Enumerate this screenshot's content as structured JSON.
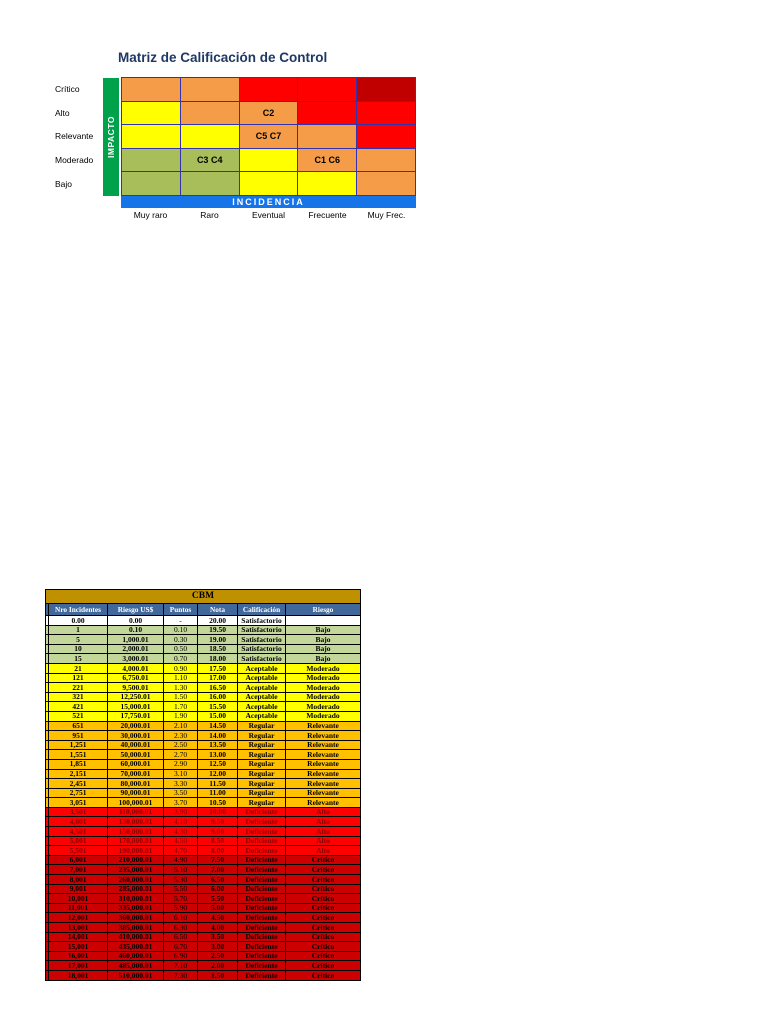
{
  "matrix": {
    "title": "Matriz de Calificación de Control",
    "impact_axis_label": "IMPACTO",
    "incidence_axis_label": "INCIDENCIA",
    "row_labels": [
      "Crítico",
      "Alto",
      "Relevante",
      "Moderado",
      "Bajo"
    ],
    "col_labels": [
      "Muy raro",
      "Raro",
      "Eventual",
      "Frecuente",
      "Muy Frec."
    ],
    "colors": {
      "low": "#A8BE5A",
      "medium": "#FFFF00",
      "high": "#F49C48",
      "severe": "#FF0000",
      "extreme": "#C00000",
      "impact_band": "#00A14B",
      "incidence_band": "#1474E8",
      "grid_line": "#3333B2",
      "title_text": "#1F3864"
    },
    "cells": [
      [
        "high",
        "high",
        "severe",
        "severe",
        "extreme"
      ],
      [
        "medium",
        "high",
        "high",
        "severe",
        "severe"
      ],
      [
        "medium",
        "medium",
        "high",
        "high",
        "severe"
      ],
      [
        "low",
        "low",
        "medium",
        "high",
        "high"
      ],
      [
        "low",
        "low",
        "medium",
        "medium",
        "high"
      ]
    ],
    "cell_labels": [
      [
        "",
        "",
        "",
        "",
        ""
      ],
      [
        "",
        "",
        "C2",
        "",
        ""
      ],
      [
        "",
        "",
        "C5 C7",
        "",
        ""
      ],
      [
        "",
        "C3 C4",
        "",
        "C1 C6",
        ""
      ],
      [
        "",
        "",
        "",
        "",
        ""
      ]
    ]
  },
  "table": {
    "title": "CBM",
    "columns": [
      "Nro Incidentes",
      "Riesgo US$",
      "Puntos",
      "Nota",
      "Calificación",
      "Riesgo"
    ],
    "colors": {
      "title_bg": "#BF9000",
      "header_bg": "#41689B",
      "header_fg": "#FFFFFF",
      "border": "#000000"
    },
    "row_styles": {
      "none": {
        "bg": "#FFFFFF",
        "fg": "#000000"
      },
      "bajo": {
        "bg": "#C4D79B",
        "fg": "#000000"
      },
      "moderado": {
        "bg": "#FFFF00",
        "fg": "#000000"
      },
      "relevante": {
        "bg": "#FFC000",
        "fg": "#000000"
      },
      "alto": {
        "bg": "#FF0000",
        "fg": "#8B0000"
      },
      "critico": {
        "bg": "#CC0000",
        "fg": "#000000"
      }
    },
    "rows": [
      [
        "0.00",
        "0.00",
        "-",
        "20.00",
        "Satisfactorio",
        "",
        "none"
      ],
      [
        "1",
        "0.10",
        "0.10",
        "19.50",
        "Satisfactorio",
        "Bajo",
        "bajo"
      ],
      [
        "5",
        "1,000.01",
        "0.30",
        "19.00",
        "Satisfactorio",
        "Bajo",
        "bajo"
      ],
      [
        "10",
        "2,000.01",
        "0.50",
        "18.50",
        "Satisfactorio",
        "Bajo",
        "bajo"
      ],
      [
        "15",
        "3,000.01",
        "0.70",
        "18.00",
        "Satisfactorio",
        "Bajo",
        "bajo"
      ],
      [
        "21",
        "4,000.01",
        "0.90",
        "17.50",
        "Aceptable",
        "Moderado",
        "moderado"
      ],
      [
        "121",
        "6,750.01",
        "1.10",
        "17.00",
        "Aceptable",
        "Moderado",
        "moderado"
      ],
      [
        "221",
        "9,500.01",
        "1.30",
        "16.50",
        "Aceptable",
        "Moderado",
        "moderado"
      ],
      [
        "321",
        "12,250.01",
        "1.50",
        "16.00",
        "Aceptable",
        "Moderado",
        "moderado"
      ],
      [
        "421",
        "15,000.01",
        "1.70",
        "15.50",
        "Aceptable",
        "Moderado",
        "moderado"
      ],
      [
        "521",
        "17,750.01",
        "1.90",
        "15.00",
        "Aceptable",
        "Moderado",
        "moderado"
      ],
      [
        "651",
        "20,000.01",
        "2.10",
        "14.50",
        "Regular",
        "Relevante",
        "relevante"
      ],
      [
        "951",
        "30,000.01",
        "2.30",
        "14.00",
        "Regular",
        "Relevante",
        "relevante"
      ],
      [
        "1,251",
        "40,000.01",
        "2.50",
        "13.50",
        "Regular",
        "Relevante",
        "relevante"
      ],
      [
        "1,551",
        "50,000.01",
        "2.70",
        "13.00",
        "Regular",
        "Relevante",
        "relevante"
      ],
      [
        "1,851",
        "60,000.01",
        "2.90",
        "12.50",
        "Regular",
        "Relevante",
        "relevante"
      ],
      [
        "2,151",
        "70,000.01",
        "3.10",
        "12.00",
        "Regular",
        "Relevante",
        "relevante"
      ],
      [
        "2,451",
        "80,000.01",
        "3.30",
        "11.50",
        "Regular",
        "Relevante",
        "relevante"
      ],
      [
        "2,751",
        "90,000.01",
        "3.50",
        "11.00",
        "Regular",
        "Relevante",
        "relevante"
      ],
      [
        "3,051",
        "100,000.01",
        "3.70",
        "10.50",
        "Regular",
        "Relevante",
        "relevante"
      ],
      [
        "3,501",
        "110,000.01",
        "3.90",
        "10.00",
        "Deficiente",
        "Alto",
        "alto"
      ],
      [
        "4,001",
        "130,000.01",
        "4.10",
        "9.50",
        "Deficiente",
        "Alto",
        "alto"
      ],
      [
        "4,501",
        "150,000.01",
        "4.30",
        "9.00",
        "Deficiente",
        "Alto",
        "alto"
      ],
      [
        "5,001",
        "170,000.01",
        "4.50",
        "8.50",
        "Deficiente",
        "Alto",
        "alto"
      ],
      [
        "5,501",
        "190,000.01",
        "4.70",
        "8.00",
        "Deficiente",
        "Alto",
        "alto"
      ],
      [
        "6,001",
        "210,000.01",
        "4.90",
        "7.50",
        "Deficiente",
        "Crítico",
        "critico"
      ],
      [
        "7,001",
        "235,000.01",
        "5.10",
        "7.00",
        "Deficiente",
        "Crítico",
        "critico"
      ],
      [
        "8,001",
        "260,000.01",
        "5.30",
        "6.50",
        "Deficiente",
        "Crítico",
        "critico"
      ],
      [
        "9,001",
        "285,000.01",
        "5.50",
        "6.00",
        "Deficiente",
        "Crítico",
        "critico"
      ],
      [
        "10,001",
        "310,000.01",
        "5.70",
        "5.50",
        "Deficiente",
        "Crítico",
        "critico"
      ],
      [
        "11,001",
        "335,000.01",
        "5.90",
        "5.00",
        "Deficiente",
        "Crítico",
        "critico"
      ],
      [
        "12,001",
        "360,000.01",
        "6.10",
        "4.50",
        "Deficiente",
        "Crítico",
        "critico"
      ],
      [
        "13,001",
        "385,000.01",
        "6.30",
        "4.00",
        "Deficiente",
        "Crítico",
        "critico"
      ],
      [
        "14,001",
        "410,000.01",
        "6.50",
        "3.50",
        "Deficiente",
        "Crítico",
        "critico"
      ],
      [
        "15,001",
        "435,000.01",
        "6.70",
        "3.00",
        "Deficiente",
        "Crítico",
        "critico"
      ],
      [
        "16,001",
        "460,000.01",
        "6.90",
        "2.50",
        "Deficiente",
        "Crítico",
        "critico"
      ],
      [
        "17,001",
        "485,000.01",
        "7.10",
        "2.00",
        "Deficiente",
        "Crítico",
        "critico"
      ],
      [
        "18,001",
        "510,000.01",
        "7.30",
        "1.50",
        "Deficiente",
        "Crítico",
        "critico"
      ]
    ]
  }
}
